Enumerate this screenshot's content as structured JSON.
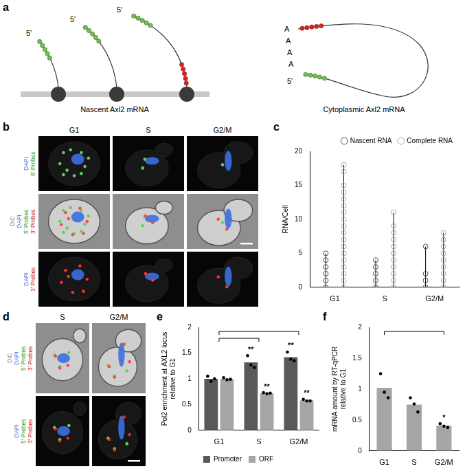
{
  "panel_labels": [
    "a",
    "b",
    "c",
    "d",
    "e",
    "f"
  ],
  "diagram": {
    "nascent": {
      "label": "Nascent Axl2 mRNA",
      "five_prime_labels": [
        "5′",
        "5′",
        "5′"
      ]
    },
    "cytoplasmic": {
      "label": "Cytoplasmic Axl2 mRNA",
      "five_prime_label": "5′",
      "poly_a": [
        "A",
        "A",
        "A",
        "A"
      ]
    }
  },
  "micrographs_b": {
    "columns": [
      "G1",
      "S",
      "G2/M"
    ],
    "row_labels": [
      [
        {
          "text": "DAPI",
          "color": "#3d6fd6"
        },
        {
          "text": "5′ Probes",
          "color": "#2e9e2e"
        }
      ],
      [
        {
          "text": "DIC",
          "color": "#7f7f7f"
        },
        {
          "text": "DAPI",
          "color": "#3d6fd6"
        },
        {
          "text": "5′ Probes",
          "color": "#2e9e2e"
        },
        {
          "text": "3′ Probes",
          "color": "#d42020"
        }
      ],
      [
        {
          "text": "DAPI",
          "color": "#3d6fd6"
        },
        {
          "text": "3′ Probes",
          "color": "#d42020"
        }
      ]
    ]
  },
  "micrographs_d": {
    "columns": [
      "S",
      "G2/M"
    ],
    "row_labels": [
      [
        {
          "text": "DIC",
          "color": "#7f7f7f"
        },
        {
          "text": "DAPI",
          "color": "#3d6fd6"
        },
        {
          "text": "5′ Probes",
          "color": "#2e9e2e"
        },
        {
          "text": "3′ Probes",
          "color": "#d42020"
        }
      ],
      [
        {
          "text": "DAPI",
          "color": "#3d6fd6"
        },
        {
          "text": "5′ Probes",
          "color": "#2e9e2e"
        },
        {
          "text": "3′ Probes",
          "color": "#d42020"
        }
      ]
    ]
  },
  "chart_data": [
    {
      "type": "scatter",
      "ylabel": "RNA/Cell",
      "categories": [
        "G1",
        "S",
        "G2/M"
      ],
      "series": [
        {
          "name": "Nascent RNA",
          "color": "#4d4d4d",
          "marker": "circle",
          "values": [
            [
              0,
              1,
              2,
              3,
              4,
              5
            ],
            [
              0,
              1,
              2,
              3,
              4
            ],
            [
              0,
              1,
              2,
              6
            ]
          ]
        },
        {
          "name": "Complete RNA",
          "color": "#a6a6a6",
          "marker": "circle",
          "values": [
            [
              0,
              1,
              2,
              3,
              4,
              5,
              6,
              7,
              8,
              9,
              10,
              11,
              12,
              13,
              14,
              15,
              17,
              18
            ],
            [
              0,
              1,
              2,
              3,
              4,
              5,
              6,
              7,
              8,
              9,
              11
            ],
            [
              0,
              1,
              2,
              3,
              4,
              5,
              6,
              7,
              8
            ]
          ]
        }
      ],
      "ylim": [
        0,
        20
      ],
      "yticks": [
        0,
        5,
        10,
        15,
        20
      ],
      "grid": false,
      "legend": "upper right"
    },
    {
      "type": "bar",
      "ylabel": [
        "Pol2 enrichment at AXL2 locus",
        "relative to G1"
      ],
      "categories": [
        "G1",
        "S",
        "G2/M"
      ],
      "series": [
        {
          "name": "Promoter",
          "color": "#595959",
          "values": [
            1.0,
            1.32,
            1.42
          ],
          "points": [
            [
              1.05,
              0.95,
              1.0
            ],
            [
              1.45,
              1.27,
              1.22
            ],
            [
              1.52,
              1.38,
              1.35
            ]
          ]
        },
        {
          "name": "ORF",
          "color": "#a6a6a6",
          "values": [
            1.0,
            0.72,
            0.58
          ],
          "points": [
            [
              1.02,
              0.98,
              0.99
            ],
            [
              0.73,
              0.71,
              0.72
            ],
            [
              0.6,
              0.57,
              0.57
            ]
          ]
        }
      ],
      "ylim": [
        0,
        2
      ],
      "yticks": [
        0,
        0.5,
        1,
        1.5,
        2
      ],
      "grid": false,
      "legend": "bottom",
      "annotations": [
        {
          "category": "S",
          "series": "Promoter",
          "text": "**"
        },
        {
          "category": "S",
          "series": "ORF",
          "text": "**"
        },
        {
          "category": "G2/M",
          "series": "Promoter",
          "text": "**"
        },
        {
          "category": "G2/M",
          "series": "ORF",
          "text": "**"
        }
      ],
      "brackets": [
        [
          "G1",
          "S"
        ],
        [
          "G1",
          "G2/M"
        ]
      ]
    },
    {
      "type": "bar",
      "ylabel": [
        "mRNA amount by RT-qPCR",
        "relative to G1"
      ],
      "categories": [
        "G1",
        "S",
        "G2/M"
      ],
      "values": [
        1.02,
        0.75,
        0.41
      ],
      "points": [
        [
          1.25,
          0.95,
          0.86
        ],
        [
          0.86,
          0.76,
          0.63
        ],
        [
          0.44,
          0.4,
          0.38
        ]
      ],
      "color": "#a6a6a6",
      "ylim": [
        0,
        2
      ],
      "yticks": [
        0,
        0.5,
        1,
        1.5,
        2
      ],
      "grid": false,
      "annotations": [
        {
          "category": "G2/M",
          "text": "*"
        }
      ],
      "brackets": [
        [
          "G1",
          "G2/M"
        ]
      ]
    }
  ]
}
